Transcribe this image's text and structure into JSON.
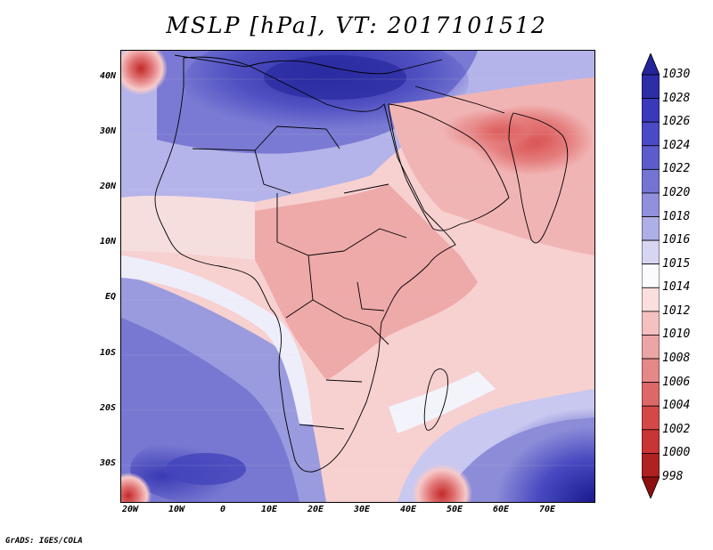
{
  "title": "MSLP [hPa], VT: 2017101512",
  "credit": "GrADS: IGES/COLA",
  "map": {
    "lat_labels": [
      "40N",
      "30N",
      "20N",
      "10N",
      "EQ",
      "10S",
      "20S",
      "30S"
    ],
    "lon_labels": [
      "20W",
      "10W",
      "0",
      "10E",
      "20E",
      "30E",
      "40E",
      "50E",
      "60E",
      "70E"
    ],
    "lon_range": [
      -22,
      80
    ],
    "lat_range": [
      -36,
      45
    ]
  },
  "colorbar": {
    "levels": [
      "1030",
      "1028",
      "1026",
      "1024",
      "1022",
      "1020",
      "1018",
      "1016",
      "1015",
      "1014",
      "1012",
      "1010",
      "1008",
      "1006",
      "1004",
      "1002",
      "1000",
      "998"
    ],
    "colors": [
      "#24249a",
      "#2d2da8",
      "#3939bb",
      "#4a4ac6",
      "#5c5ccc",
      "#7474d4",
      "#9090dd",
      "#afafe7",
      "#d6d6f3",
      "#fbfbff",
      "#fbdede",
      "#f5c0c0",
      "#eba5a5",
      "#e58888",
      "#dd6868",
      "#d44848",
      "#c93434",
      "#b02121",
      "#8e1010"
    ]
  }
}
